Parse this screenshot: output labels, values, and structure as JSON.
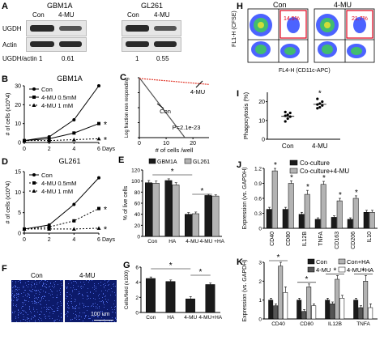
{
  "panel_a": {
    "letter": "A",
    "headers": [
      "GBM1A",
      "GL261"
    ],
    "lanes": [
      "Con",
      "4-MU",
      "Con",
      "4-MU"
    ],
    "row_labels": [
      "UGDH",
      "Actin"
    ],
    "ratio_label": "UGDH/actin",
    "ratios": [
      "1",
      "0.61",
      "1",
      "0.55"
    ]
  },
  "panel_h": {
    "letter": "H",
    "titles": [
      "Con",
      "4-MU"
    ],
    "ylabel": "FL1-H (CFSE)",
    "xlabel": "FL4-H (CD11c-APC)",
    "percents": [
      "14.5%",
      "21.7%"
    ]
  },
  "panel_f": {
    "letter": "F",
    "titles": [
      "Con",
      "4-MU"
    ],
    "scale_label": "100 um"
  },
  "chart_data": [
    {
      "id": "B",
      "type": "line",
      "title": "GBM1A",
      "xlabel": "Days",
      "ylabel": "# of cells (x10^4)",
      "x": [
        0,
        2,
        4,
        6
      ],
      "xlim": [
        0,
        6
      ],
      "ylim": [
        0,
        30
      ],
      "yticks": [
        0,
        10,
        20,
        30
      ],
      "series": [
        {
          "name": "Con",
          "values": [
            1,
            3,
            12,
            30
          ],
          "style": "solid",
          "marker": "circle"
        },
        {
          "name": "4-MU 0.5mM",
          "values": [
            1,
            2,
            5,
            10
          ],
          "style": "solid",
          "marker": "square"
        },
        {
          "name": "4-MU 1 mM",
          "values": [
            1,
            1,
            1.5,
            2
          ],
          "style": "dashed",
          "marker": "triangle"
        }
      ],
      "annotations": [
        "*",
        "*"
      ]
    },
    {
      "id": "C",
      "type": "line",
      "ylabel": "Log fraction non responding",
      "xlabel": "# of cells /well",
      "x_ticks": [
        0,
        10,
        20
      ],
      "y_ticks": [
        0,
        -1,
        -2,
        -3,
        -4
      ],
      "series": [
        {
          "name": "Con",
          "points": [
            [
              0,
              0
            ],
            [
              17,
              -4.0
            ]
          ],
          "color": "#555555"
        },
        {
          "name": "4-MU",
          "points": [
            [
              0,
              -0.05
            ],
            [
              26,
              -0.45
            ]
          ],
          "color": "#e23b2e"
        }
      ],
      "annotation": "P=2.1e-23"
    },
    {
      "id": "D",
      "type": "line",
      "title": "GL261",
      "xlabel": "Days",
      "ylabel": "# of cells (x10^4)",
      "x": [
        0,
        2,
        4,
        6
      ],
      "xlim": [
        0,
        6
      ],
      "ylim": [
        0,
        15
      ],
      "yticks": [
        0,
        5,
        10,
        15
      ],
      "series": [
        {
          "name": "Con",
          "values": [
            1,
            2,
            7,
            13.5
          ],
          "style": "solid",
          "marker": "circle"
        },
        {
          "name": "4-MU 0.5mM",
          "values": [
            1,
            1.5,
            3,
            6
          ],
          "style": "dashed",
          "marker": "square"
        },
        {
          "name": "4-MU 1 mM",
          "values": [
            1,
            1,
            1,
            1.2
          ],
          "style": "dashed",
          "marker": "triangle"
        }
      ],
      "annotations": [
        "*",
        "*"
      ]
    },
    {
      "id": "E",
      "type": "bar",
      "ylabel": "% of live cells",
      "categories": [
        "Con",
        "HA",
        "4-MU",
        "4-MU +HA"
      ],
      "ylim": [
        0,
        120
      ],
      "yticks": [
        0,
        20,
        40,
        60,
        80,
        100,
        120
      ],
      "series": [
        {
          "name": "GBM1A",
          "values": [
            97,
            101,
            40,
            74
          ],
          "errors": [
            4,
            3,
            3,
            2
          ],
          "color": "#1a1a1a"
        },
        {
          "name": "GL261",
          "values": [
            96,
            93,
            41,
            73
          ],
          "errors": [
            4,
            4,
            3,
            2
          ],
          "color": "#b3b3b3"
        }
      ],
      "annotations": [
        "*",
        "*"
      ]
    },
    {
      "id": "G",
      "type": "bar",
      "ylabel": "Cells/field (x100)",
      "categories": [
        "Con",
        "HA",
        "4-MU",
        "4-MU+HA"
      ],
      "ylim": [
        0,
        6
      ],
      "yticks": [
        0,
        2,
        4,
        6
      ],
      "series": [
        {
          "name": "",
          "values": [
            4.5,
            4.1,
            1.8,
            3.7
          ],
          "errors": [
            0.2,
            0.2,
            0.3,
            0.2
          ],
          "color": "#1a1a1a"
        }
      ],
      "annotations": [
        "*",
        "*"
      ]
    },
    {
      "id": "I",
      "type": "scatter",
      "ylabel": "Phagocytosis (%)",
      "categories": [
        "Con",
        "4-MU"
      ],
      "ylim": [
        0,
        25
      ],
      "yticks": [
        0,
        10,
        20
      ],
      "points": {
        "Con": [
          9.5,
          11,
          12,
          12.5,
          13,
          14,
          14.5
        ],
        "4-MU": [
          16.5,
          17,
          18,
          18.5,
          19,
          20,
          21.5
        ]
      },
      "means": [
        12.2,
        18.6
      ],
      "annotation": "*"
    },
    {
      "id": "J",
      "type": "bar",
      "ylabel": "Expression (vs. GAPDH)",
      "categories": [
        "CD40",
        "CD80",
        "IL12B",
        "TNFA",
        "CD163",
        "CD206",
        "IL10"
      ],
      "ylim": [
        0,
        1.2
      ],
      "yticks": [
        0,
        0.3,
        0.6,
        0.9,
        1.2
      ],
      "series": [
        {
          "name": "Co-culture",
          "values": [
            0.38,
            0.38,
            0.28,
            0.18,
            0.22,
            0.18,
            0.32
          ],
          "errors": [
            0.04,
            0.04,
            0.04,
            0.03,
            0.03,
            0.03,
            0.04
          ],
          "color": "#1a1a1a"
        },
        {
          "name": "Co-culture+4-MU",
          "values": [
            1.15,
            0.9,
            0.68,
            0.88,
            0.55,
            0.6,
            0.32
          ],
          "errors": [
            0.05,
            0.05,
            0.08,
            0.06,
            0.05,
            0.05,
            0.04
          ],
          "color": "#b3b3b3"
        }
      ],
      "annotations": [
        "*",
        "*",
        "*",
        "*",
        "*",
        "*"
      ]
    },
    {
      "id": "K",
      "type": "bar",
      "ylabel": "Expression (vs. GAPDH)",
      "categories": [
        "CD40",
        "CD80",
        "IL12B",
        "TNFA"
      ],
      "ylim": [
        0,
        3
      ],
      "yticks": [
        0,
        1,
        2,
        3
      ],
      "series": [
        {
          "name": "Con",
          "values": [
            1.0,
            1.0,
            1.0,
            1.0
          ],
          "errors": [
            0.1,
            0.1,
            0.1,
            0.1
          ],
          "color": "#1a1a1a"
        },
        {
          "name": "4-MU",
          "values": [
            0.7,
            0.4,
            0.8,
            0.6
          ],
          "errors": [
            0.1,
            0.1,
            0.1,
            0.1
          ],
          "color": "#555555"
        },
        {
          "name": "Con+HA",
          "values": [
            2.8,
            1.7,
            2.1,
            2.0
          ],
          "errors": [
            0.2,
            0.15,
            0.2,
            0.3
          ],
          "color": "#b3b3b3"
        },
        {
          "name": "4-MU+HA",
          "values": [
            1.4,
            0.7,
            1.1,
            0.6
          ],
          "errors": [
            0.3,
            0.1,
            0.15,
            0.2
          ],
          "color": "#ffffff"
        }
      ],
      "annotations": [
        "*",
        "*",
        "*",
        "*"
      ]
    }
  ]
}
